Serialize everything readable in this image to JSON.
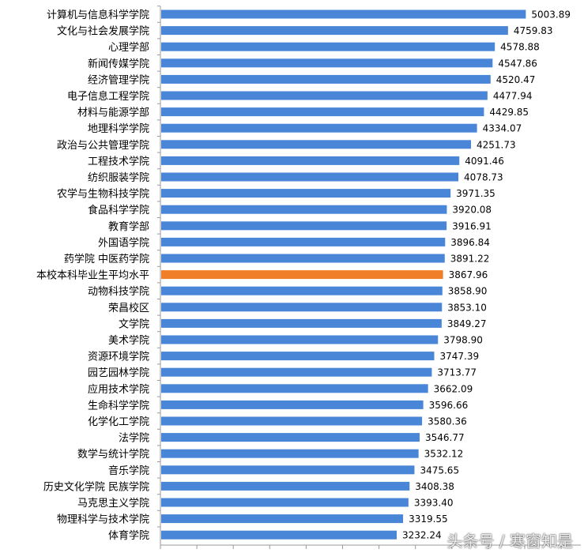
{
  "chart_data": {
    "type": "bar",
    "orientation": "horizontal",
    "title": "",
    "xlabel": "",
    "ylabel": "",
    "xlim": [
      0,
      5200
    ],
    "grid": false,
    "legend": "none",
    "colors": {
      "default": "#4a86d8",
      "highlight": "#f07e28"
    },
    "highlight_category": "本校本科毕业生平均水平",
    "categories": [
      "计算机与信息科学学院",
      "文化与社会发展学院",
      "心理学部",
      "新闻传媒学院",
      "经济管理学院",
      "电子信息工程学院",
      "材料与能源学部",
      "地理科学学院",
      "政治与公共管理学院",
      "工程技术学院",
      "纺织服装学院",
      "农学与生物科技学院",
      "食品科学学院",
      "教育学部",
      "外国语学院",
      "药学院 中医药学院",
      "本校本科毕业生平均水平",
      "动物科技学院",
      "荣昌校区",
      "文学院",
      "美术学院",
      "资源环境学院",
      "园艺园林学院",
      "应用技术学院",
      "生命科学学院",
      "化学化工学院",
      "法学院",
      "数学与统计学院",
      "音乐学院",
      "历史文化学院 民族学院",
      "马克思主义学院",
      "物理科学与技术学院",
      "体育学院"
    ],
    "values": [
      5003.89,
      4759.83,
      4578.88,
      4547.86,
      4520.47,
      4477.94,
      4429.85,
      4334.07,
      4251.73,
      4091.46,
      4078.73,
      3971.35,
      3920.08,
      3916.91,
      3896.84,
      3891.22,
      3867.96,
      3858.9,
      3853.1,
      3849.27,
      3798.9,
      3747.39,
      3713.77,
      3662.09,
      3596.66,
      3580.36,
      3546.77,
      3532.12,
      3475.65,
      3408.38,
      3393.4,
      3319.55,
      3232.24
    ],
    "value_labels": [
      "5003.89",
      "4759.83",
      "4578.88",
      "4547.86",
      "4520.47",
      "4477.94",
      "4429.85",
      "4334.07",
      "4251.73",
      "4091.46",
      "4078.73",
      "3971.35",
      "3920.08",
      "3916.91",
      "3896.84",
      "3891.22",
      "3867.96",
      "3858.90",
      "3853.10",
      "3849.27",
      "3798.90",
      "3747.39",
      "3713.77",
      "3662.09",
      "3596.66",
      "3580.36",
      "3546.77",
      "3532.12",
      "3475.65",
      "3408.38",
      "3393.40",
      "3319.55",
      "3232.24"
    ]
  },
  "watermark": "头条号 / 寒窗知是"
}
